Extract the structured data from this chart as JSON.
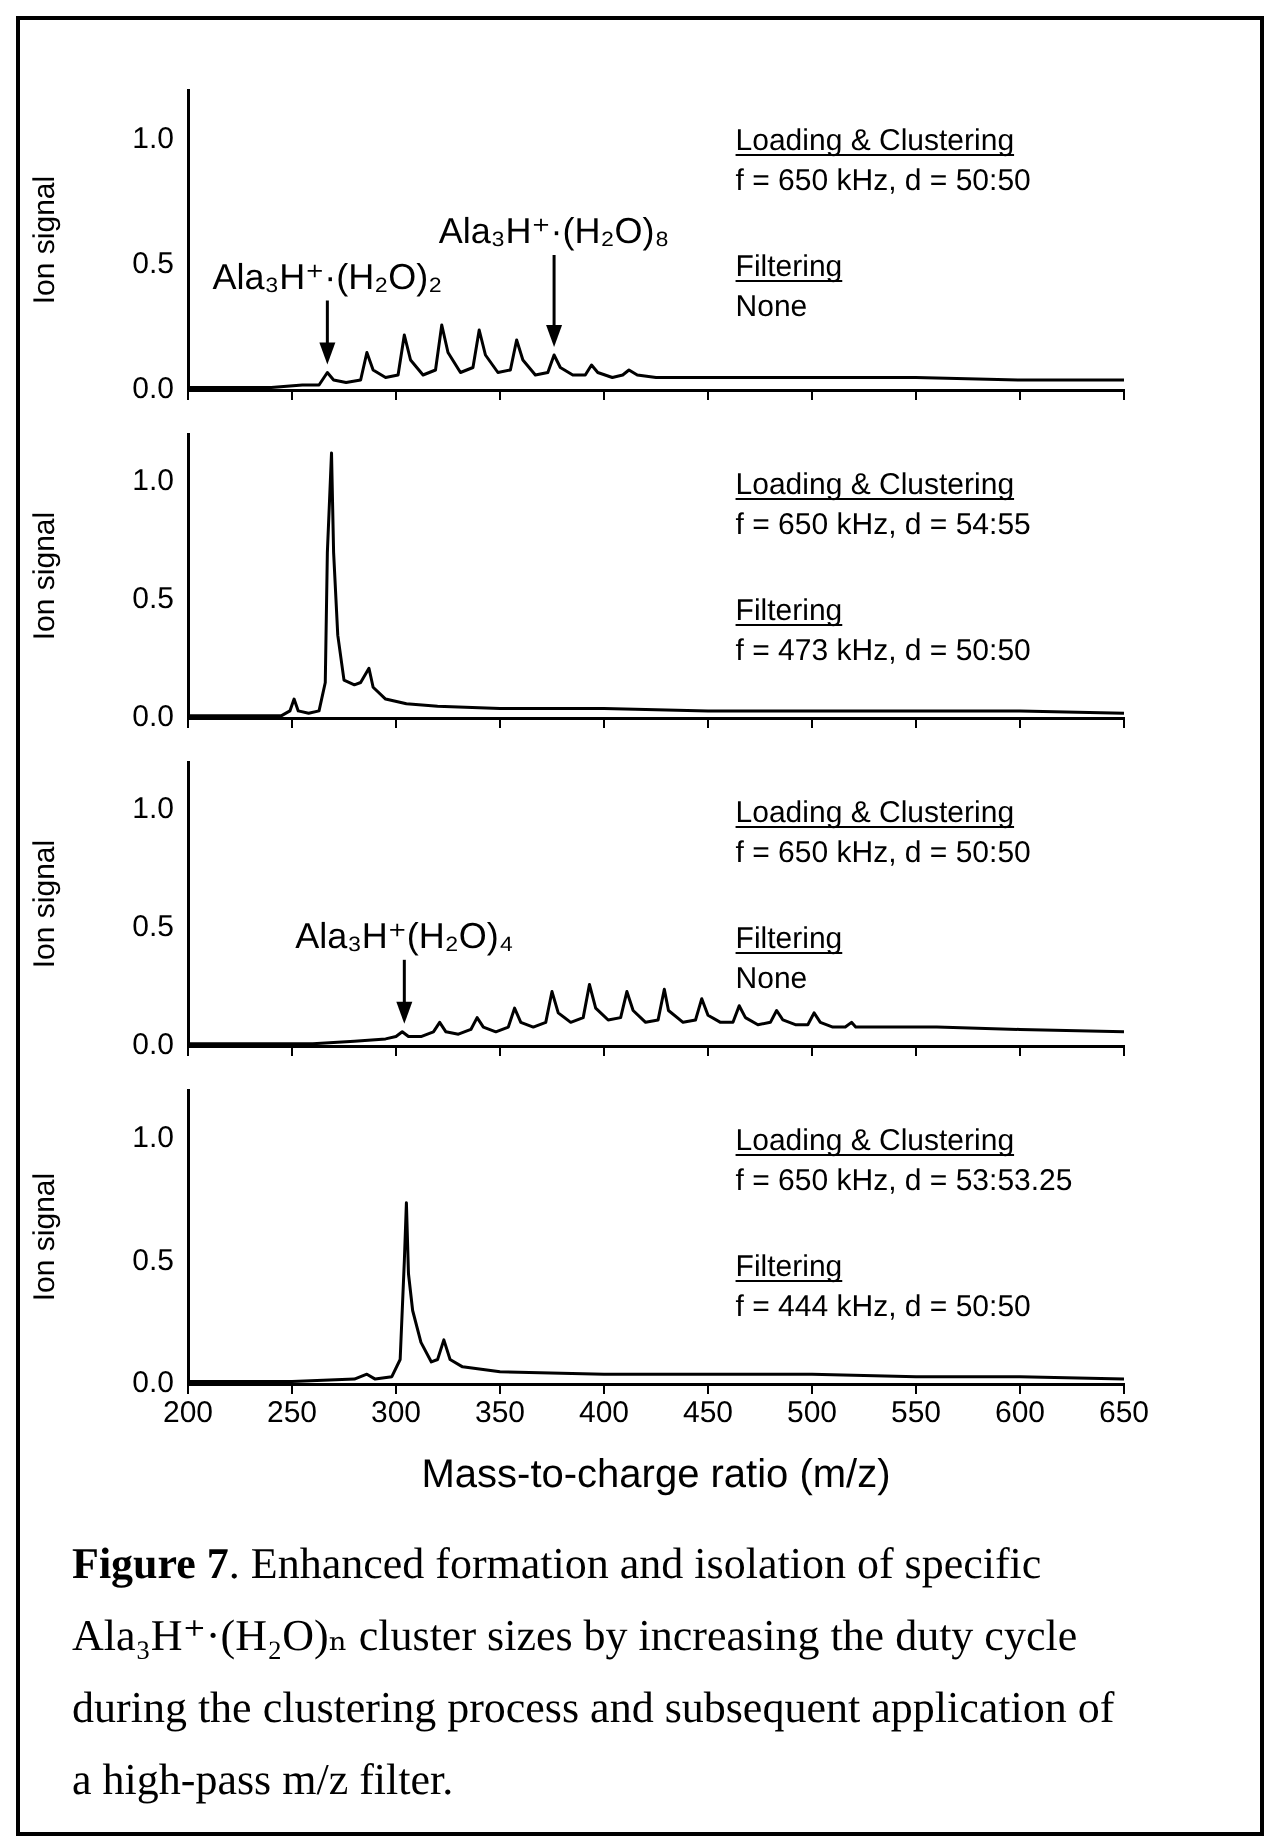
{
  "chart_data": [
    {
      "type": "line",
      "ylabel": "Ion signal",
      "xlim": [
        200,
        650
      ],
      "xticks": [
        200,
        250,
        300,
        350,
        400,
        450,
        500,
        550,
        600,
        650
      ],
      "ylim": [
        0,
        1.2
      ],
      "yticks": [
        {
          "value": 0,
          "label": "0.0"
        },
        {
          "value": 0.5,
          "label": "0.5"
        },
        {
          "value": 1,
          "label": "1.0"
        }
      ],
      "tick_labels": "y",
      "series": [
        {
          "color": "#000000",
          "x": [
            200,
            220,
            240,
            255,
            263,
            267,
            270,
            276,
            283,
            286,
            289,
            295,
            301,
            304,
            307,
            313,
            319,
            322,
            325,
            331,
            337,
            340,
            343,
            349,
            355,
            358,
            361,
            367,
            373,
            376,
            379,
            385,
            391,
            394,
            397,
            404,
            409,
            412,
            416,
            425,
            450,
            500,
            550,
            600,
            650
          ],
          "values": [
            0.01,
            0.01,
            0.01,
            0.02,
            0.02,
            0.07,
            0.04,
            0.03,
            0.04,
            0.15,
            0.08,
            0.05,
            0.06,
            0.22,
            0.12,
            0.06,
            0.08,
            0.26,
            0.15,
            0.07,
            0.09,
            0.24,
            0.14,
            0.07,
            0.08,
            0.2,
            0.12,
            0.06,
            0.07,
            0.14,
            0.09,
            0.06,
            0.06,
            0.1,
            0.07,
            0.05,
            0.06,
            0.08,
            0.06,
            0.05,
            0.05,
            0.05,
            0.05,
            0.04,
            0.04
          ]
        }
      ],
      "annotations": [
        "Loading & Clustering",
        "f = 650 kHz, d = 50:50",
        "Filtering",
        "None",
        {
          "text": "Ala₃H⁺·(H₂O)₂",
          "x": 267,
          "y": 0.07
        },
        {
          "text": "Ala₃H⁺·(H₂O)₈",
          "x": 376,
          "y": 0.14
        }
      ]
    },
    {
      "type": "line",
      "ylabel": "Ion signal",
      "xlim": [
        200,
        650
      ],
      "xticks": [
        200,
        250,
        300,
        350,
        400,
        450,
        500,
        550,
        600,
        650
      ],
      "ylim": [
        0,
        1.2
      ],
      "yticks": [
        {
          "value": 0,
          "label": "0.0"
        },
        {
          "value": 0.5,
          "label": "0.5"
        },
        {
          "value": 1,
          "label": "1.0"
        }
      ],
      "tick_labels": "y",
      "series": [
        {
          "color": "#000000",
          "x": [
            200,
            230,
            245,
            249,
            251,
            253,
            258,
            263,
            266,
            267,
            269,
            270,
            272,
            275,
            280,
            283,
            287,
            289,
            295,
            305,
            320,
            350,
            400,
            450,
            500,
            550,
            600,
            650
          ],
          "values": [
            0.01,
            0.01,
            0.01,
            0.03,
            0.08,
            0.03,
            0.02,
            0.03,
            0.15,
            0.7,
            1.12,
            0.7,
            0.35,
            0.16,
            0.14,
            0.15,
            0.21,
            0.13,
            0.08,
            0.06,
            0.05,
            0.04,
            0.04,
            0.03,
            0.03,
            0.03,
            0.03,
            0.02
          ]
        }
      ],
      "annotations": [
        "Loading & Clustering",
        "f = 650 kHz, d = 54:55",
        "Filtering",
        "f = 473 kHz, d = 50:50"
      ]
    },
    {
      "type": "line",
      "ylabel": "Ion signal",
      "xlim": [
        200,
        650
      ],
      "xticks": [
        200,
        250,
        300,
        350,
        400,
        450,
        500,
        550,
        600,
        650
      ],
      "ylim": [
        0,
        1.2
      ],
      "yticks": [
        {
          "value": 0,
          "label": "0.0"
        },
        {
          "value": 0.5,
          "label": "0.5"
        },
        {
          "value": 1,
          "label": "1.0"
        }
      ],
      "tick_labels": "y",
      "series": [
        {
          "color": "#000000",
          "x": [
            200,
            230,
            260,
            280,
            295,
            300,
            303,
            306,
            312,
            318,
            321,
            324,
            330,
            336,
            339,
            342,
            348,
            354,
            357,
            360,
            366,
            372,
            375,
            378,
            384,
            390,
            393,
            396,
            402,
            408,
            411,
            414,
            420,
            426,
            429,
            431,
            438,
            444,
            447,
            450,
            456,
            462,
            465,
            468,
            474,
            480,
            483,
            486,
            492,
            498,
            501,
            504,
            510,
            516,
            519,
            521,
            530,
            560,
            600,
            650
          ],
          "values": [
            0.01,
            0.01,
            0.01,
            0.02,
            0.03,
            0.04,
            0.06,
            0.04,
            0.04,
            0.06,
            0.1,
            0.06,
            0.05,
            0.07,
            0.12,
            0.08,
            0.06,
            0.08,
            0.16,
            0.1,
            0.08,
            0.1,
            0.23,
            0.14,
            0.1,
            0.12,
            0.26,
            0.16,
            0.11,
            0.12,
            0.23,
            0.15,
            0.1,
            0.11,
            0.24,
            0.15,
            0.1,
            0.11,
            0.2,
            0.13,
            0.1,
            0.1,
            0.17,
            0.12,
            0.09,
            0.1,
            0.15,
            0.11,
            0.09,
            0.09,
            0.14,
            0.1,
            0.08,
            0.08,
            0.1,
            0.08,
            0.08,
            0.08,
            0.07,
            0.06
          ]
        }
      ],
      "annotations": [
        "Loading & Clustering",
        "f = 650 kHz, d = 50:50",
        "Filtering",
        "None",
        {
          "text": "Ala₃H⁺(H₂O)₄",
          "x": 304,
          "y": 0.06
        }
      ]
    },
    {
      "type": "line",
      "ylabel": "Ion signal",
      "xlabel": "Mass-to-charge ratio (m/z)",
      "xlim": [
        200,
        650
      ],
      "xticks": [
        200,
        250,
        300,
        350,
        400,
        450,
        500,
        550,
        600,
        650
      ],
      "ylim": [
        0,
        1.2
      ],
      "yticks": [
        {
          "value": 0,
          "label": "0.0"
        },
        {
          "value": 0.5,
          "label": "0.5"
        },
        {
          "value": 1,
          "label": "1.0"
        }
      ],
      "series": [
        {
          "color": "#000000",
          "x": [
            200,
            250,
            280,
            286,
            290,
            298,
            302,
            304,
            305,
            306,
            308,
            312,
            317,
            320,
            323,
            326,
            332,
            350,
            400,
            450,
            500,
            550,
            600,
            650
          ],
          "values": [
            0.01,
            0.01,
            0.02,
            0.04,
            0.02,
            0.03,
            0.1,
            0.5,
            0.74,
            0.45,
            0.3,
            0.17,
            0.09,
            0.1,
            0.18,
            0.1,
            0.07,
            0.05,
            0.04,
            0.04,
            0.04,
            0.03,
            0.03,
            0.02
          ]
        }
      ],
      "annotations": [
        "Loading & Clustering",
        "f = 650 kHz, d = 53:53.25",
        "Filtering",
        "f = 444 kHz, d = 50:50",
        "Figure 7. Enhanced formation and isolation of specific Ala₃H⁺·(H₂O)ₙ cluster sizes by increasing the duty cycle during the clustering process and subsequent application of a high-pass m/z filter."
      ]
    }
  ]
}
